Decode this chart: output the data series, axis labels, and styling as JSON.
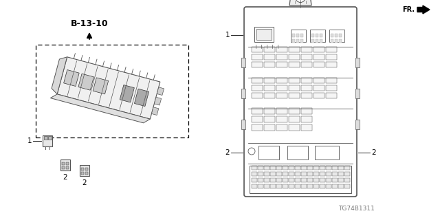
{
  "bg_color": "#ffffff",
  "part_number": "TG74B1311",
  "fr_label": "FR.",
  "ref_label": "B-13-10",
  "label1": "1",
  "label2": "2",
  "figsize": [
    6.4,
    3.2
  ],
  "dpi": 100,
  "gray": "#555555",
  "dgray": "#333333",
  "lgray": "#aaaaaa"
}
